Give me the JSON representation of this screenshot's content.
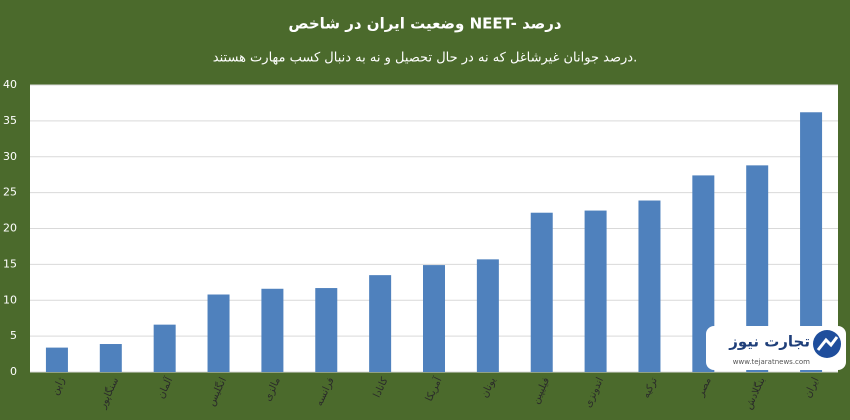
{
  "chart_data": {
    "type": "bar",
    "title": "وضعیت ایران در شاخص NEET- درصد",
    "subtitle": "درصد جوانان غیرشاغل که نه در حال تحصیل و نه به دنبال کسب مهارت هستند.",
    "categories": [
      "ژاپن",
      "سنگاپور",
      "آلمان",
      "انگلیس",
      "مالزی",
      "فرانسه",
      "کانادا",
      "آمریکا",
      "یونان",
      "فیلیپین",
      "اندونزی",
      "ترکیه",
      "مصر",
      "بنگلادش",
      "ایران"
    ],
    "values": [
      3.4,
      3.9,
      6.6,
      10.8,
      11.6,
      11.7,
      13.5,
      14.9,
      15.7,
      22.2,
      22.5,
      23.9,
      27.4,
      28.8,
      36.2
    ],
    "color": "#4f81bd",
    "ylim": [
      0,
      40
    ],
    "yticks": [
      0,
      5,
      10,
      15,
      20,
      25,
      30,
      35,
      40
    ],
    "grid": true
  },
  "watermark": {
    "name": "تجارت نیوز",
    "url": "www.tejaratnews.com"
  }
}
